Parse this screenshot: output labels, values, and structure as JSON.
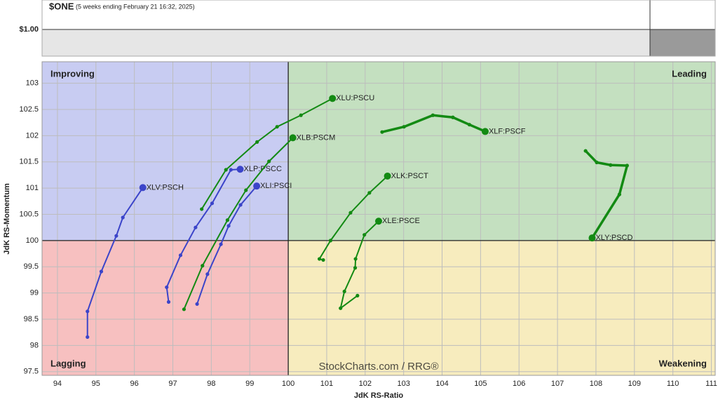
{
  "chart_data": {
    "type": "rrg",
    "symbol": "$ONE",
    "subtitle": "(5 weeks ending February 21 16:32, 2025)",
    "price_label": "$1.00",
    "x_label": "JdK RS-Ratio",
    "y_label": "JdK RS-Momentum",
    "watermark": "StockCharts.com / RRG®",
    "center": [
      100,
      100
    ],
    "quadrants": [
      {
        "name": "Improving",
        "color": "#c8ccf2",
        "text_color": "#3a45c8"
      },
      {
        "name": "Leading",
        "color": "#c4e0c0",
        "text_color": "#178a17"
      },
      {
        "name": "Lagging",
        "color": "#f7c0c0",
        "text_color": "#d42020"
      },
      {
        "name": "Weakening",
        "color": "#f7ecbe",
        "text_color": "#d4a820"
      }
    ],
    "xlim": [
      93.6,
      111.1
    ],
    "ylim": [
      97.43,
      103.41
    ],
    "xticks": [
      94,
      95,
      96,
      97,
      98,
      99,
      100,
      101,
      102,
      103,
      104,
      105,
      106,
      107,
      108,
      109,
      110,
      111
    ],
    "yticks": [
      97.5,
      98,
      98.5,
      99,
      99.5,
      100,
      100.5,
      101,
      101.5,
      102,
      102.5,
      103
    ],
    "grid": true,
    "series": [
      {
        "name": "XLV:PSCH",
        "color": "#3b44c9",
        "line_width": 2,
        "x": [
          94.78,
          94.78,
          95.14,
          95.53,
          95.7,
          96.22
        ],
        "y": [
          98.16,
          98.65,
          99.41,
          100.09,
          100.44,
          101.01
        ]
      },
      {
        "name": "XLP:PSCC",
        "color": "#3b44c9",
        "line_width": 2,
        "x": [
          96.89,
          96.84,
          97.2,
          97.59,
          98.02,
          98.51,
          98.75
        ],
        "y": [
          98.83,
          99.11,
          99.72,
          100.25,
          100.71,
          101.35,
          101.36
        ]
      },
      {
        "name": "XLI:PSCI",
        "color": "#3b44c9",
        "line_width": 2,
        "x": [
          97.63,
          97.9,
          98.25,
          98.45,
          98.76,
          99.18
        ],
        "y": [
          98.79,
          99.36,
          99.93,
          100.28,
          100.68,
          101.04
        ]
      },
      {
        "name": "XLU:PSCU",
        "color": "#138a13",
        "line_width": 2,
        "x": [
          97.75,
          98.38,
          99.19,
          99.71,
          100.33,
          101.15
        ],
        "y": [
          100.6,
          101.35,
          101.88,
          102.17,
          102.39,
          102.71
        ]
      },
      {
        "name": "XLB:PSCM",
        "color": "#138a13",
        "line_width": 2,
        "x": [
          97.29,
          97.77,
          98.42,
          98.9,
          99.5,
          100.12
        ],
        "y": [
          98.69,
          99.52,
          100.39,
          100.96,
          101.51,
          101.96
        ]
      },
      {
        "name": "XLF:PSCF",
        "color": "#138a13",
        "line_width": 3.5,
        "x": [
          102.44,
          103.01,
          103.76,
          104.28,
          104.71,
          105.12
        ],
        "y": [
          102.07,
          102.17,
          102.39,
          102.35,
          102.21,
          102.08
        ]
      },
      {
        "name": "XLY:PSCD",
        "color": "#138a13",
        "line_width": 3.5,
        "x": [
          107.73,
          108.02,
          108.38,
          108.81,
          108.61,
          107.9
        ],
        "y": [
          101.71,
          101.49,
          101.44,
          101.43,
          100.88,
          100.05
        ]
      },
      {
        "name": "XLK:PSCT",
        "color": "#138a13",
        "line_width": 2,
        "x": [
          100.91,
          100.81,
          101.1,
          101.62,
          102.11,
          102.58
        ],
        "y": [
          99.63,
          99.65,
          100.0,
          100.53,
          100.91,
          101.23
        ]
      },
      {
        "name": "XLE:PSCE",
        "color": "#138a13",
        "line_width": 2,
        "x": [
          101.8,
          101.36,
          101.46,
          101.74,
          101.75,
          101.98,
          102.35
        ],
        "y": [
          98.95,
          98.71,
          99.03,
          99.48,
          99.65,
          100.11,
          100.37
        ]
      }
    ]
  }
}
